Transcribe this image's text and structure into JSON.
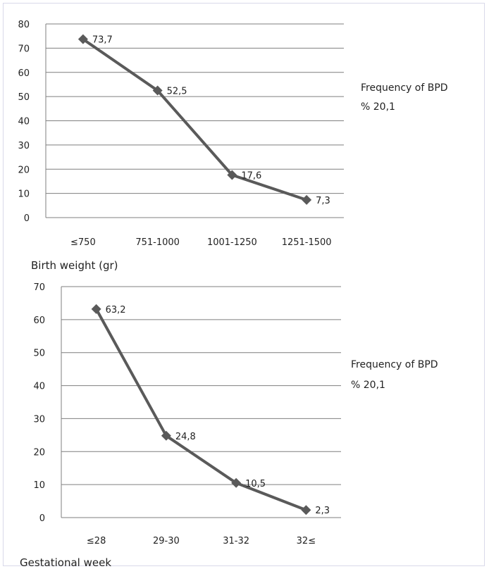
{
  "chart_data": [
    {
      "type": "line",
      "categories": [
        "≤750",
        "751-1000",
        "1001-1250",
        "1251-1500"
      ],
      "values": [
        73.7,
        52.5,
        17.6,
        7.3
      ],
      "data_labels": [
        "73,7",
        "52,5",
        "17,6",
        "7,3"
      ],
      "xlabel": "Birth weight (gr)",
      "ylabel": "",
      "ylim": [
        0,
        80
      ],
      "yticks": [
        0,
        10,
        20,
        30,
        40,
        50,
        60,
        70,
        80
      ],
      "side_text": [
        "Frequency of BPD",
        "% 20,1"
      ],
      "grid": true,
      "marker": "diamond",
      "line_color": "#5a5a5a"
    },
    {
      "type": "line",
      "categories": [
        "≤28",
        "29-30",
        "31-32",
        "32≤"
      ],
      "values": [
        63.2,
        24.8,
        10.5,
        2.3
      ],
      "data_labels": [
        "63,2",
        "24,8",
        "10,5",
        "2,3"
      ],
      "xlabel": "Gestational week",
      "ylabel": "",
      "ylim": [
        0,
        70
      ],
      "yticks": [
        0,
        10,
        20,
        30,
        40,
        50,
        60,
        70
      ],
      "side_text": [
        "Frequency of BPD",
        "% 20,1"
      ],
      "grid": true,
      "marker": "diamond",
      "line_color": "#5a5a5a"
    }
  ]
}
